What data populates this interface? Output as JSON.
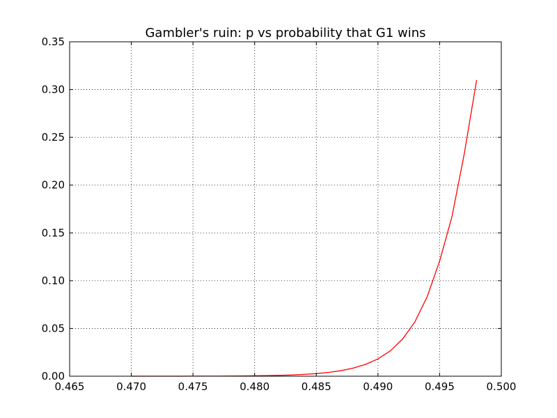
{
  "chart_data": {
    "type": "line",
    "title": "Gambler's ruin: p vs probability that G1 wins",
    "xlabel": "",
    "ylabel": "",
    "xlim": [
      0.465,
      0.5
    ],
    "ylim": [
      0,
      0.35
    ],
    "xticks": [
      0.465,
      0.47,
      0.475,
      0.48,
      0.485,
      0.49,
      0.495,
      0.5
    ],
    "xtick_labels": [
      "0.465",
      "0.470",
      "0.475",
      "0.480",
      "0.485",
      "0.490",
      "0.495",
      "0.500"
    ],
    "yticks": [
      0,
      0.05,
      0.1,
      0.15,
      0.2,
      0.25,
      0.3,
      0.35
    ],
    "ytick_labels": [
      "0.00",
      "0.05",
      "0.10",
      "0.15",
      "0.20",
      "0.25",
      "0.30",
      "0.35"
    ],
    "grid": true,
    "series": [
      {
        "color": "#ff0000",
        "x": [
          0.47,
          0.471,
          0.472,
          0.473,
          0.474,
          0.475,
          0.476,
          0.477,
          0.478,
          0.479,
          0.48,
          0.481,
          0.482,
          0.483,
          0.484,
          0.485,
          0.486,
          0.487,
          0.488,
          0.489,
          0.49,
          0.491,
          0.492,
          0.493,
          0.494,
          0.495,
          0.496,
          0.497,
          0.498
        ],
        "y": [
          0.0,
          0.0,
          0.0,
          0.0,
          0.0,
          0.0001,
          0.0001,
          0.0001,
          0.0002,
          0.0003,
          0.0004,
          0.0006,
          0.0009,
          0.0013,
          0.0019,
          0.0027,
          0.004,
          0.0058,
          0.0085,
          0.0124,
          0.0181,
          0.0265,
          0.0389,
          0.057,
          0.0835,
          0.1205,
          0.167,
          0.233,
          0.31
        ]
      }
    ]
  }
}
